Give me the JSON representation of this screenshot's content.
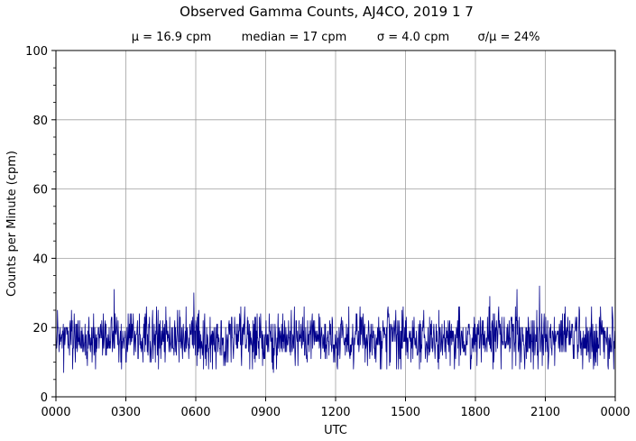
{
  "chart_data": {
    "type": "line",
    "title": "Observed Gamma Counts, AJ4CO, 2019 1 7",
    "subtitle_stats": [
      "μ = 16.9 cpm",
      "median = 17 cpm",
      "σ = 4.0 cpm",
      "σ/μ = 24%"
    ],
    "xlabel": "UTC",
    "ylabel": "Counts per Minute (cpm)",
    "x_tick_labels": [
      "0000",
      "0300",
      "0600",
      "0900",
      "1200",
      "1500",
      "1800",
      "2100",
      "0000"
    ],
    "y_tick_labels": [
      "0",
      "20",
      "40",
      "60",
      "80",
      "100"
    ],
    "xlim_minutes": [
      0,
      1440
    ],
    "ylim": [
      0,
      100
    ],
    "grid": true,
    "series": [
      {
        "color": "#00008b",
        "interval_minutes": 1,
        "stats": {
          "mean": 16.9,
          "median": 17,
          "std": 4.0
        },
        "notable_points": [
          {
            "x_min": 150,
            "y": 31
          },
          {
            "x_min": 355,
            "y": 30
          },
          {
            "x_min": 560,
            "y": 29
          },
          {
            "x_min": 1117,
            "y": 29
          },
          {
            "x_min": 1187,
            "y": 31
          },
          {
            "x_min": 1245,
            "y": 32
          },
          {
            "x_min": 560,
            "y": 7
          },
          {
            "x_min": 20,
            "y": 7
          },
          {
            "x_min": 1125,
            "y": 8
          },
          {
            "x_min": 1175,
            "y": 8
          }
        ]
      }
    ]
  }
}
